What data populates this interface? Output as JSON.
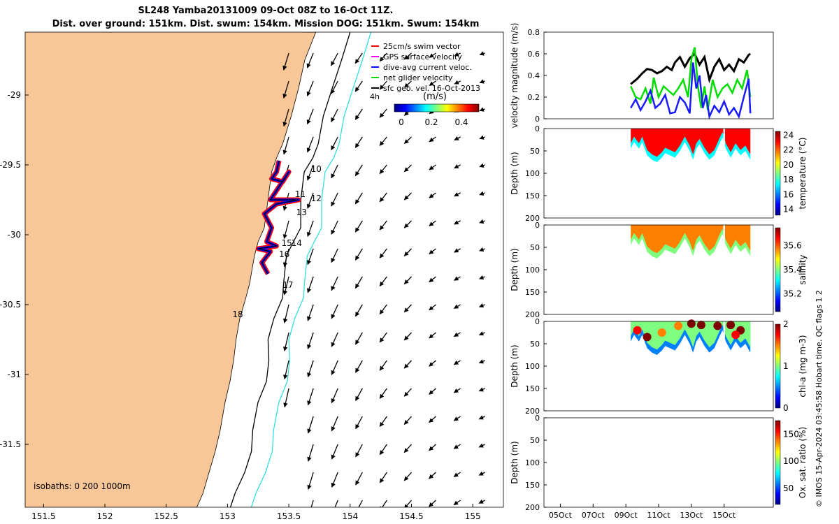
{
  "title": {
    "line1": "SL248 Yamba20131009 09-Oct 08Z to 16-Oct 11Z.",
    "line2": "Dist. over ground: 151km. Dist. swum: 154km. Mission DOG: 151km. Swum: 154km"
  },
  "map": {
    "lon_ticks": [
      "151.5",
      "152",
      "152.5",
      "153",
      "153.5",
      "154",
      "154.5",
      "155"
    ],
    "lat_ticks": [
      "-29",
      "-29.5",
      "-30",
      "-30.5",
      "-31",
      "-31.5"
    ],
    "xlim": [
      151.35,
      155.25
    ],
    "ylim": [
      -31.95,
      -28.55
    ],
    "isobath_label": "isobaths: 0   200  1000m",
    "legend": [
      {
        "label": "25cm/s swim vector",
        "color": "#ff0000"
      },
      {
        "label": "GPS surface velocity",
        "color": "#ff00ff"
      },
      {
        "label": "dive-avg current veloc.",
        "color": "#0000ff"
      },
      {
        "label": "net glider velocity",
        "color": "#00dd00"
      },
      {
        "label": "sfc geo. vel. 16-Oct-2013",
        "color": "#000000"
      }
    ],
    "colorbar": {
      "title": "(m/s)",
      "ticks": [
        "0",
        "0.2",
        "0.4"
      ],
      "extra_label": "4h"
    },
    "day_labels": [
      {
        "text": "10",
        "lon": 153.68,
        "lat": -29.55
      },
      {
        "text": "11",
        "lon": 153.55,
        "lat": -29.73
      },
      {
        "text": "12",
        "lon": 153.68,
        "lat": -29.76
      },
      {
        "text": "13",
        "lon": 153.56,
        "lat": -29.86
      },
      {
        "text": "14",
        "lon": 153.52,
        "lat": -30.08
      },
      {
        "text": "15",
        "lon": 153.44,
        "lat": -30.08
      },
      {
        "text": "16",
        "lon": 153.42,
        "lat": -30.16
      },
      {
        "text": "17",
        "lon": 153.45,
        "lat": -30.38
      },
      {
        "text": "18",
        "lon": 153.04,
        "lat": -30.59
      }
    ],
    "colors": {
      "land": "#f9c698",
      "sea": "#ffffff",
      "isobath_200": "#000000",
      "isobath_1000": "#33dddd"
    }
  },
  "chart_data": [
    {
      "type": "line",
      "ylabel": "velocity magnitude (m/s)",
      "ylim": [
        0,
        0.8
      ],
      "yticks": [
        "0",
        "0.2",
        "0.4",
        "0.6",
        "0.8"
      ],
      "xlim_days": [
        4,
        18
      ],
      "series": [
        {
          "color": "#000000",
          "x": [
            9.3,
            9.7,
            10.0,
            10.3,
            10.6,
            10.9,
            11.2,
            11.5,
            11.8,
            12.0,
            12.3,
            12.6,
            12.9,
            13.2,
            13.5,
            13.8,
            14.1,
            14.4,
            14.7,
            15.0,
            15.3,
            15.6,
            15.9,
            16.2,
            16.5,
            16.6
          ],
          "y": [
            0.32,
            0.37,
            0.42,
            0.46,
            0.45,
            0.42,
            0.44,
            0.48,
            0.45,
            0.52,
            0.57,
            0.48,
            0.56,
            0.6,
            0.5,
            0.57,
            0.36,
            0.48,
            0.55,
            0.45,
            0.5,
            0.44,
            0.55,
            0.52,
            0.59,
            0.6
          ]
        },
        {
          "color": "#00dd00",
          "x": [
            9.3,
            9.6,
            9.9,
            10.2,
            10.5,
            10.7,
            11.0,
            11.3,
            11.6,
            11.9,
            12.2,
            12.5,
            12.8,
            13.0,
            13.2,
            13.4,
            13.6,
            13.8,
            14.0,
            14.3,
            14.6,
            14.9,
            15.2,
            15.5,
            15.8,
            16.1,
            16.4,
            16.6
          ],
          "y": [
            0.3,
            0.2,
            0.18,
            0.28,
            0.14,
            0.38,
            0.2,
            0.3,
            0.26,
            0.22,
            0.28,
            0.36,
            0.2,
            0.55,
            0.66,
            0.3,
            0.1,
            0.3,
            0.08,
            0.36,
            0.2,
            0.28,
            0.32,
            0.24,
            0.36,
            0.28,
            0.45,
            0.2
          ]
        },
        {
          "color": "#1a1aff",
          "x": [
            9.3,
            9.6,
            9.9,
            10.2,
            10.5,
            10.8,
            11.1,
            11.4,
            11.7,
            12.0,
            12.3,
            12.6,
            12.9,
            13.1,
            13.3,
            13.5,
            13.7,
            13.9,
            14.1,
            14.4,
            14.7,
            15.0,
            15.3,
            15.6,
            15.9,
            16.2,
            16.5,
            16.6
          ],
          "y": [
            0.1,
            0.18,
            0.08,
            0.16,
            0.26,
            0.1,
            0.14,
            0.22,
            0.05,
            0.06,
            0.2,
            0.15,
            0.05,
            0.52,
            0.28,
            0.4,
            0.1,
            0.22,
            0.02,
            0.12,
            0.06,
            0.16,
            0.04,
            0.1,
            0.02,
            0.2,
            0.37,
            0.05
          ]
        }
      ]
    },
    {
      "type": "heatmap",
      "ylabel": "Depth (m)",
      "clabel": "temperature (°C)",
      "cticks": [
        "14",
        "16",
        "18",
        "20",
        "22",
        "24"
      ],
      "crange": [
        13.2,
        24.5
      ],
      "ylim": [
        0,
        200
      ],
      "yticks": [
        "0",
        "50",
        "100",
        "150",
        "200"
      ],
      "base_value": 22.5,
      "profile": [
        [
          9.3,
          45
        ],
        [
          9.5,
          30
        ],
        [
          9.8,
          45
        ],
        [
          10.0,
          30
        ],
        [
          10.3,
          60
        ],
        [
          10.6,
          70
        ],
        [
          10.9,
          75
        ],
        [
          11.2,
          65
        ],
        [
          11.4,
          55
        ],
        [
          11.7,
          60
        ],
        [
          12.0,
          65
        ],
        [
          12.3,
          50
        ],
        [
          12.6,
          30
        ],
        [
          12.9,
          50
        ],
        [
          13.1,
          70
        ],
        [
          13.3,
          45
        ],
        [
          13.5,
          35
        ],
        [
          13.8,
          55
        ],
        [
          14.1,
          70
        ],
        [
          14.4,
          60
        ],
        [
          14.7,
          35
        ],
        [
          14.9,
          20
        ],
        [
          15.1,
          45
        ],
        [
          15.4,
          65
        ],
        [
          15.7,
          45
        ],
        [
          16.0,
          60
        ],
        [
          16.3,
          50
        ],
        [
          16.6,
          70
        ]
      ],
      "gaps": [
        [
          14.95,
          15.05
        ]
      ],
      "deep_value": 17.5
    },
    {
      "type": "heatmap",
      "ylabel": "Depth (m)",
      "clabel": "salinity",
      "cticks": [
        "35.2",
        "35.4",
        "35.6"
      ],
      "crange": [
        35.05,
        35.75
      ],
      "ylim": [
        0,
        200
      ],
      "yticks": [
        "0",
        "50",
        "100",
        "150",
        "200"
      ],
      "base_value": 35.55,
      "profile": [
        [
          9.3,
          45
        ],
        [
          9.5,
          30
        ],
        [
          9.8,
          45
        ],
        [
          10.0,
          30
        ],
        [
          10.3,
          60
        ],
        [
          10.6,
          70
        ],
        [
          10.9,
          75
        ],
        [
          11.2,
          65
        ],
        [
          11.4,
          55
        ],
        [
          11.7,
          60
        ],
        [
          12.0,
          65
        ],
        [
          12.3,
          50
        ],
        [
          12.6,
          30
        ],
        [
          12.9,
          50
        ],
        [
          13.1,
          70
        ],
        [
          13.3,
          45
        ],
        [
          13.5,
          35
        ],
        [
          13.8,
          55
        ],
        [
          14.1,
          70
        ],
        [
          14.4,
          60
        ],
        [
          14.7,
          35
        ],
        [
          14.9,
          20
        ],
        [
          15.1,
          45
        ],
        [
          15.4,
          65
        ],
        [
          15.7,
          45
        ],
        [
          16.0,
          60
        ],
        [
          16.3,
          50
        ],
        [
          16.6,
          70
        ]
      ],
      "gaps": [
        [
          14.95,
          15.05
        ]
      ],
      "deep_value": 35.4
    },
    {
      "type": "heatmap",
      "ylabel": "Depth (m)",
      "clabel": "chl-a (mg m-3)",
      "cticks": [
        "0",
        "1",
        "2"
      ],
      "crange": [
        0,
        2
      ],
      "ylim": [
        0,
        200
      ],
      "yticks": [
        "0",
        "50",
        "100",
        "150",
        "200"
      ],
      "base_value": 0.9,
      "profile": [
        [
          9.3,
          45
        ],
        [
          9.5,
          30
        ],
        [
          9.8,
          45
        ],
        [
          10.0,
          30
        ],
        [
          10.3,
          60
        ],
        [
          10.6,
          70
        ],
        [
          10.9,
          75
        ],
        [
          11.2,
          65
        ],
        [
          11.4,
          55
        ],
        [
          11.7,
          60
        ],
        [
          12.0,
          65
        ],
        [
          12.3,
          50
        ],
        [
          12.6,
          30
        ],
        [
          12.9,
          50
        ],
        [
          13.1,
          70
        ],
        [
          13.3,
          45
        ],
        [
          13.5,
          35
        ],
        [
          13.8,
          55
        ],
        [
          14.1,
          70
        ],
        [
          14.4,
          60
        ],
        [
          14.7,
          35
        ],
        [
          14.9,
          20
        ],
        [
          15.1,
          45
        ],
        [
          15.4,
          65
        ],
        [
          15.7,
          45
        ],
        [
          16.0,
          60
        ],
        [
          16.3,
          50
        ],
        [
          16.6,
          70
        ]
      ],
      "gaps": [
        [
          14.95,
          15.05
        ]
      ],
      "deep_value": 0.4,
      "blobs": [
        [
          9.7,
          20,
          1.8
        ],
        [
          10.3,
          35,
          1.9
        ],
        [
          11.2,
          25,
          1.6
        ],
        [
          12.2,
          10,
          1.5
        ],
        [
          13.0,
          5,
          2.0
        ],
        [
          13.6,
          8,
          2.0
        ],
        [
          14.6,
          10,
          2.0
        ],
        [
          15.4,
          8,
          2.0
        ],
        [
          16.0,
          20,
          2.0
        ],
        [
          15.7,
          30,
          1.8
        ]
      ]
    },
    {
      "type": "heatmap",
      "ylabel": "Depth (m)",
      "clabel": "Ox. sat. ratio (%)",
      "cticks": [
        "50",
        "100",
        "150"
      ],
      "crange": [
        20,
        175
      ],
      "ylim": [
        0,
        200
      ],
      "yticks": [
        "0",
        "50",
        "100",
        "150",
        "200"
      ],
      "profile": []
    }
  ],
  "time_axis": {
    "ticks": [
      "05Oct",
      "07Oct",
      "09Oct",
      "11Oct",
      "13Oct",
      "15Oct"
    ]
  },
  "footer": "© IMOS 15-Apr-2024 03:45:58 Hobart time. QC flags 1  2"
}
